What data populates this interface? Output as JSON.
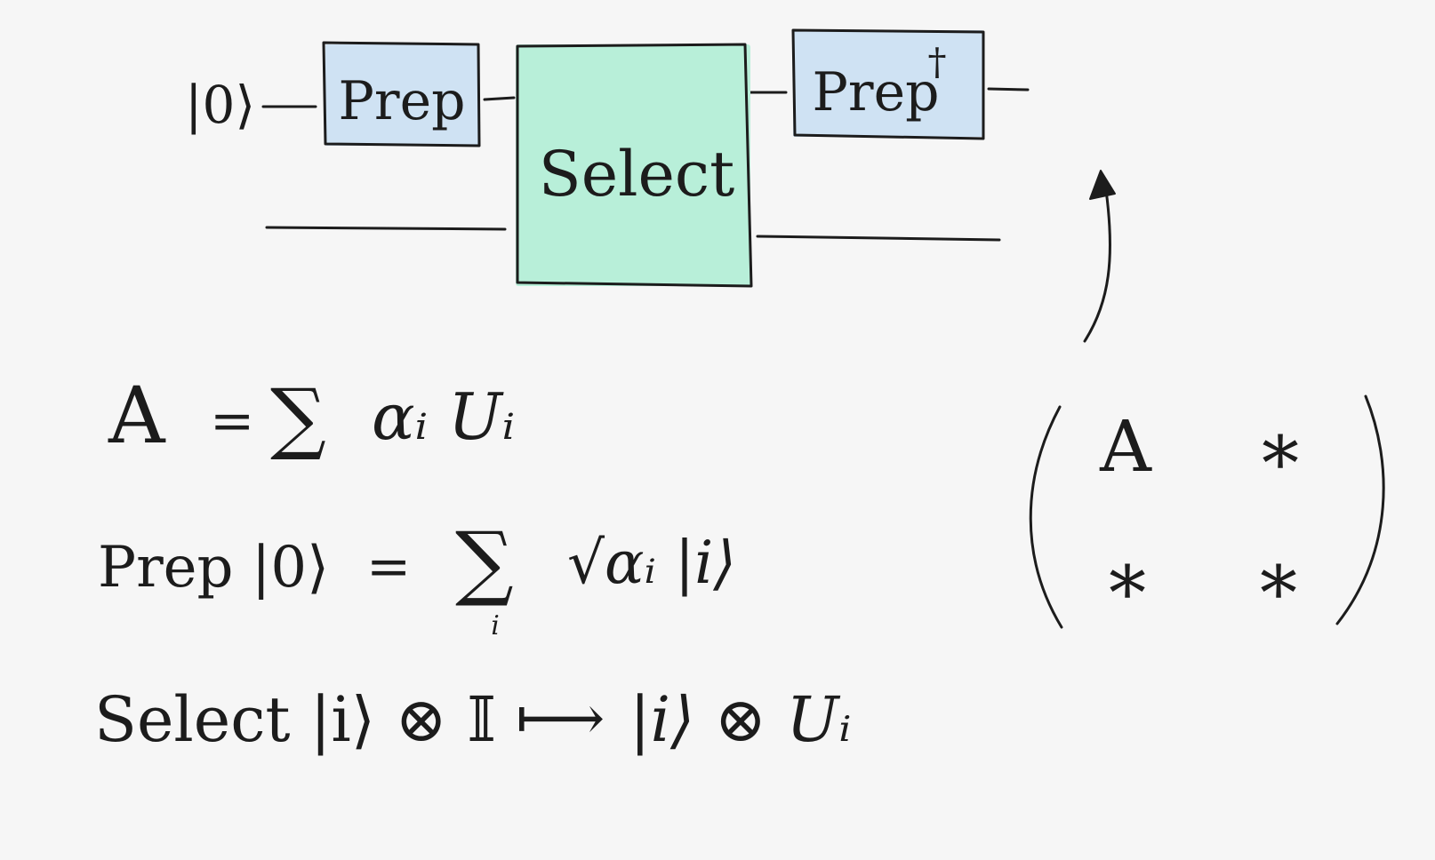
{
  "circuit": {
    "input_ket": "|0⟩",
    "prep_label": "Prep",
    "select_label": "Select",
    "prep_dagger_label": "Prep",
    "dagger": "†"
  },
  "equations": {
    "eq1": {
      "lhs": "A",
      "rel": "=",
      "sum": "∑",
      "body": "αᵢ Uᵢ"
    },
    "eq2": {
      "lhs": "Prep |0⟩",
      "rel": "=",
      "sum": "∑",
      "sum_index": "i",
      "body": "√αᵢ |i⟩"
    },
    "eq3": {
      "lhs": "Select |i⟩ ⊗ 𝕀",
      "arrow": "⟼",
      "rhs": "|i⟩ ⊗ Uᵢ"
    }
  },
  "matrix": {
    "cells": [
      "A",
      "∗",
      "∗",
      "∗"
    ]
  },
  "colors": {
    "prep_fill": "#cfe2f3",
    "select_fill": "#b8efd9",
    "ink": "#1c1c1c",
    "background": "#f6f6f6"
  }
}
